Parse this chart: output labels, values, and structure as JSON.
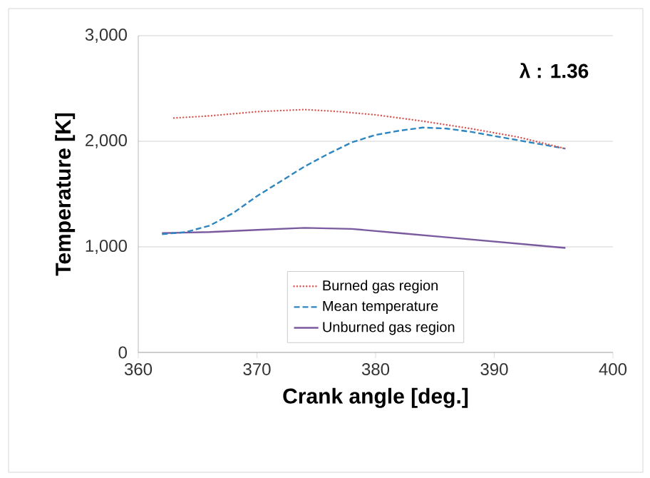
{
  "chart_data": {
    "type": "line",
    "xlabel": "Crank angle [deg.]",
    "ylabel": "Temperature [K]",
    "annotations": [
      "λ : 1.36"
    ],
    "xlim": [
      360,
      400
    ],
    "xticks": [
      360,
      370,
      380,
      390,
      400
    ],
    "ylim": [
      0,
      3000
    ],
    "yticks": [
      {
        "value": 0,
        "label": "0"
      },
      {
        "value": 1000,
        "label": "1,000"
      },
      {
        "value": 2000,
        "label": "2,000"
      },
      {
        "value": 3000,
        "label": "3,000"
      }
    ],
    "grid": "y",
    "legend": "bottom",
    "marker": "none",
    "series": [
      {
        "name": "Burned gas region",
        "color": "#d9534f",
        "line_style": "dotted",
        "x": [
          363,
          366,
          370,
          374,
          377,
          380,
          384,
          388,
          392,
          396
        ],
        "values": [
          2220,
          2240,
          2280,
          2300,
          2280,
          2250,
          2190,
          2120,
          2040,
          1930
        ]
      },
      {
        "name": "Mean temperature",
        "color": "#2e86c1",
        "line_style": "dashed",
        "x": [
          362,
          364,
          366,
          368,
          370,
          372,
          374,
          376,
          378,
          380,
          382,
          384,
          386,
          388,
          390,
          392,
          394,
          396
        ],
        "values": [
          1120,
          1140,
          1200,
          1320,
          1480,
          1620,
          1760,
          1880,
          1990,
          2060,
          2100,
          2130,
          2120,
          2090,
          2050,
          2010,
          1970,
          1930
        ]
      },
      {
        "name": "Unburned gas region",
        "color": "#7a5a9e",
        "line_style": "solid",
        "x": [
          362,
          366,
          370,
          374,
          378,
          382,
          386,
          390,
          394,
          396
        ],
        "values": [
          1130,
          1140,
          1160,
          1180,
          1170,
          1130,
          1090,
          1050,
          1010,
          990
        ]
      }
    ]
  }
}
